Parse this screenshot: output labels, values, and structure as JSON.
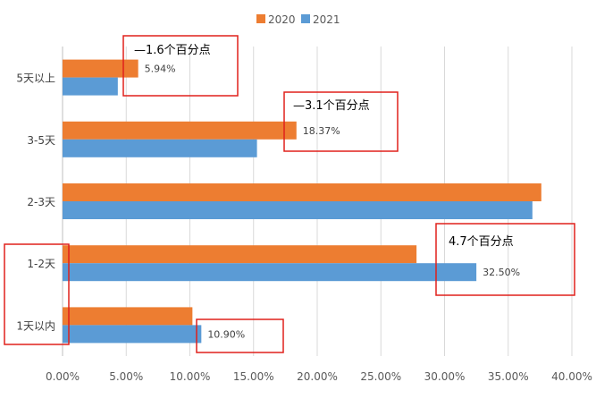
{
  "chart_data": {
    "type": "bar",
    "orientation": "horizontal",
    "categories": [
      "5天以上",
      "3-5天",
      "2-3天",
      "1-2天",
      "1天以内"
    ],
    "series": [
      {
        "name": "2020",
        "color": "#ED7D31",
        "values": [
          5.94,
          18.37,
          37.6,
          27.8,
          10.2
        ]
      },
      {
        "name": "2021",
        "color": "#5B9BD5",
        "values": [
          4.34,
          15.27,
          36.9,
          32.5,
          10.9
        ]
      }
    ],
    "data_labels": [
      {
        "text": "5.94%",
        "category": "5天以上",
        "series": "2020"
      },
      {
        "text": "18.37%",
        "category": "3-5天",
        "series": "2020"
      },
      {
        "text": "32.50%",
        "category": "1-2天",
        "series": "2021"
      },
      {
        "text": "10.90%",
        "category": "1天以内",
        "series": "2021"
      }
    ],
    "annotations": [
      {
        "text": "—1.6个百分点",
        "category": "5天以上"
      },
      {
        "text": "—3.1个百分点",
        "category": "3-5天"
      },
      {
        "text": "4.7个百分点",
        "category": "1-2天"
      }
    ],
    "x_ticks": [
      "0.00%",
      "5.00%",
      "10.00%",
      "15.00%",
      "20.00%",
      "25.00%",
      "30.00%",
      "35.00%",
      "40.00%"
    ],
    "xlim": [
      0,
      40
    ],
    "grid": true,
    "legend_position": "top"
  }
}
